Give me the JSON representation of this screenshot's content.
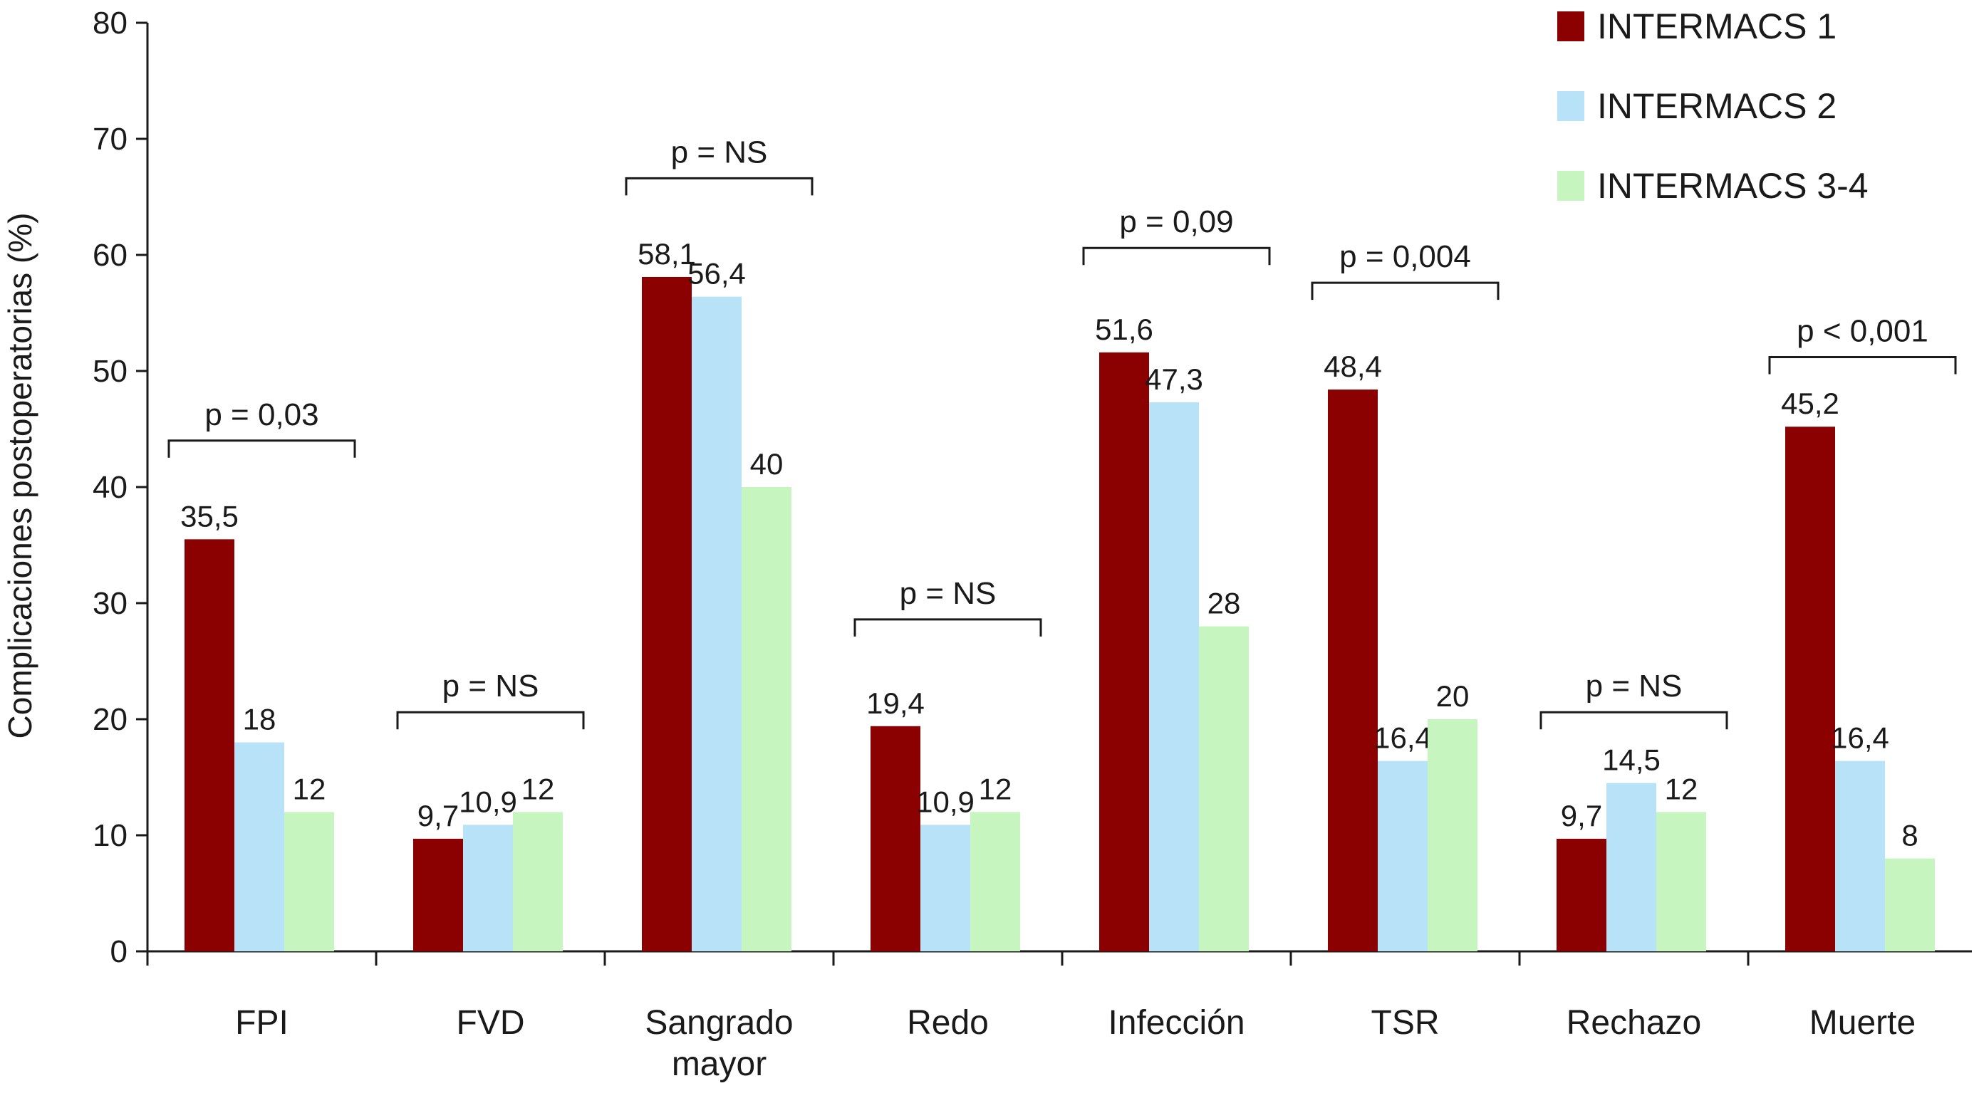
{
  "chart_data": {
    "type": "bar",
    "title": "",
    "xlabel": "",
    "ylabel": "Complicaciones postoperatorias (%)",
    "ylim": [
      0,
      80
    ],
    "yticks": [
      0,
      10,
      20,
      30,
      40,
      50,
      60,
      70,
      80
    ],
    "grid": false,
    "legend_position": "top-right",
    "categories": [
      [
        "FPI"
      ],
      [
        "FVD"
      ],
      [
        "Sangrado",
        "mayor"
      ],
      [
        "Redo"
      ],
      [
        "Infección"
      ],
      [
        "TSR"
      ],
      [
        "Rechazo"
      ],
      [
        "Muerte"
      ]
    ],
    "series": [
      {
        "name": "INTERMACS 1",
        "color": "#8b0000",
        "values": [
          35.5,
          9.7,
          58.1,
          19.4,
          51.6,
          48.4,
          9.7,
          45.2
        ],
        "labels": [
          "35,5",
          "9,7",
          "58,1",
          "19,4",
          "51,6",
          "48,4",
          "9,7",
          "45,2"
        ]
      },
      {
        "name": "INTERMACS 2",
        "color": "#b8e2f8",
        "values": [
          18,
          10.9,
          56.4,
          10.9,
          47.3,
          16.4,
          14.5,
          16.4
        ],
        "labels": [
          "18",
          "10,9",
          "56,4",
          "10,9",
          "47,3",
          "16,4",
          "14,5",
          "16,4"
        ]
      },
      {
        "name": "INTERMACS 3-4",
        "color": "#c6f5c0",
        "values": [
          12,
          12,
          40,
          12,
          28,
          20,
          12,
          8
        ],
        "labels": [
          "12",
          "12",
          "40",
          "12",
          "28",
          "20",
          "12",
          "8"
        ]
      }
    ],
    "annotations": [
      {
        "category": 0,
        "text": "p = 0,03",
        "level": 44
      },
      {
        "category": 1,
        "text": "p = NS",
        "level": 20.6
      },
      {
        "category": 2,
        "text": "p = NS",
        "level": 66.6
      },
      {
        "category": 3,
        "text": "p = NS",
        "level": 28.6
      },
      {
        "category": 4,
        "text": "p = 0,09",
        "level": 60.6
      },
      {
        "category": 5,
        "text": "p = 0,004",
        "level": 57.6
      },
      {
        "category": 6,
        "text": "p = NS",
        "level": 20.6
      },
      {
        "category": 7,
        "text": "p < 0,001",
        "level": 51.2
      }
    ]
  }
}
